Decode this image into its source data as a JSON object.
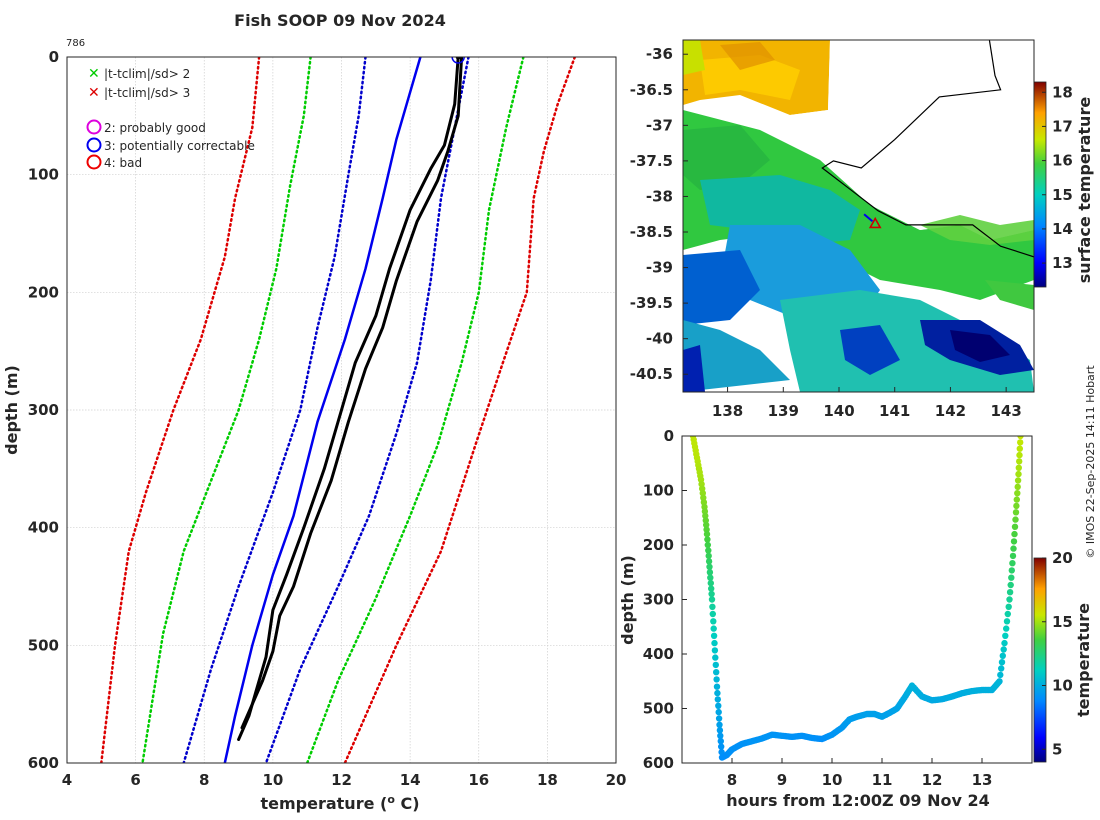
{
  "title": "Fish SOOP 09 Nov 2024",
  "profile_id": "786",
  "copyright": "© IMOS 22-Sep-2025 14:11 Hobart",
  "legend": {
    "items": [
      {
        "symbol": "x",
        "color": "#00cc00",
        "label": "|t-tclim|/sd> 2"
      },
      {
        "symbol": "x",
        "color": "#dd0000",
        "label": "|t-tclim|/sd> 3"
      },
      {
        "symbol": "o",
        "color": "#dd00dd",
        "label": "2: probably good"
      },
      {
        "symbol": "o",
        "color": "#0000ee",
        "label": "3: potentially correctable"
      },
      {
        "symbol": "o",
        "color": "#ee0000",
        "label": "4: bad"
      }
    ]
  },
  "colors": {
    "clim_mean": "#0000ee",
    "sd1": "#0000cc",
    "sd2": "#00cc00",
    "sd3": "#dd0000",
    "profile": "#000000",
    "sea_mask": "#ffffff",
    "coast": "#000000",
    "ship_marker": "#cc0000"
  },
  "chart_data": [
    {
      "id": "profile",
      "type": "line",
      "title": "Fish SOOP 09 Nov 2024",
      "xlabel": "temperature (",
      "xlabel_sup": "o",
      "xlabel_end": " C)",
      "ylabel": "depth (m)",
      "xlim": [
        4,
        20
      ],
      "ylim": [
        0,
        600
      ],
      "xticks": [
        4,
        6,
        8,
        10,
        12,
        14,
        16,
        18,
        20
      ],
      "yticks": [
        0,
        100,
        200,
        300,
        400,
        500,
        600
      ],
      "series": [
        {
          "name": "climatology mean",
          "style": "solid",
          "color": "#0000ee",
          "points": [
            [
              14.3,
              0
            ],
            [
              14.0,
              30
            ],
            [
              13.6,
              70
            ],
            [
              13.2,
              120
            ],
            [
              12.7,
              180
            ],
            [
              12.1,
              240
            ],
            [
              11.3,
              310
            ],
            [
              10.6,
              390
            ],
            [
              10.0,
              440
            ],
            [
              9.4,
              500
            ],
            [
              8.9,
              560
            ],
            [
              8.6,
              600
            ]
          ]
        },
        {
          "name": "mean - 1 sd",
          "style": "dotted",
          "color": "#0000cc",
          "points": [
            [
              12.7,
              0
            ],
            [
              12.5,
              50
            ],
            [
              12.2,
              100
            ],
            [
              11.8,
              170
            ],
            [
              11.3,
              230
            ],
            [
              10.8,
              300
            ],
            [
              10.0,
              370
            ],
            [
              9.0,
              450
            ],
            [
              8.2,
              520
            ],
            [
              7.4,
              600
            ]
          ]
        },
        {
          "name": "mean + 1 sd",
          "style": "dotted",
          "color": "#0000cc",
          "points": [
            [
              15.7,
              0
            ],
            [
              15.3,
              60
            ],
            [
              14.9,
              120
            ],
            [
              14.6,
              190
            ],
            [
              14.2,
              260
            ],
            [
              13.6,
              320
            ],
            [
              12.8,
              390
            ],
            [
              11.9,
              450
            ],
            [
              10.8,
              520
            ],
            [
              9.8,
              600
            ]
          ]
        },
        {
          "name": "mean - 2 sd",
          "style": "dotted",
          "color": "#00cc00",
          "points": [
            [
              11.1,
              0
            ],
            [
              10.9,
              50
            ],
            [
              10.5,
              110
            ],
            [
              10.1,
              180
            ],
            [
              9.6,
              240
            ],
            [
              9.0,
              300
            ],
            [
              8.2,
              360
            ],
            [
              7.4,
              420
            ],
            [
              6.8,
              490
            ],
            [
              6.2,
              600
            ]
          ]
        },
        {
          "name": "mean + 2 sd",
          "style": "dotted",
          "color": "#00cc00",
          "points": [
            [
              17.3,
              0
            ],
            [
              16.8,
              60
            ],
            [
              16.3,
              130
            ],
            [
              16.0,
              200
            ],
            [
              15.5,
              260
            ],
            [
              14.8,
              330
            ],
            [
              14.0,
              390
            ],
            [
              13.0,
              460
            ],
            [
              11.9,
              530
            ],
            [
              11.0,
              600
            ]
          ]
        },
        {
          "name": "mean - 3 sd",
          "style": "dotted",
          "color": "#dd0000",
          "points": [
            [
              9.6,
              0
            ],
            [
              9.4,
              60
            ],
            [
              8.9,
              120
            ],
            [
              8.6,
              170
            ],
            [
              7.9,
              240
            ],
            [
              7.1,
              300
            ],
            [
              6.3,
              370
            ],
            [
              5.8,
              420
            ],
            [
              5.4,
              500
            ],
            [
              5.0,
              600
            ]
          ]
        },
        {
          "name": "mean + 3 sd",
          "style": "dotted",
          "color": "#dd0000",
          "points": [
            [
              18.8,
              0
            ],
            [
              18.3,
              40
            ],
            [
              17.9,
              80
            ],
            [
              17.6,
              120
            ],
            [
              17.4,
              200
            ],
            [
              16.7,
              260
            ],
            [
              15.9,
              330
            ],
            [
              14.9,
              420
            ],
            [
              13.6,
              500
            ],
            [
              12.1,
              600
            ]
          ]
        },
        {
          "name": "profile down",
          "style": "solid",
          "color": "#000000",
          "points": [
            [
              15.4,
              0
            ],
            [
              15.3,
              40
            ],
            [
              15.0,
              75
            ],
            [
              14.6,
              95
            ],
            [
              14.0,
              130
            ],
            [
              13.4,
              180
            ],
            [
              13.0,
              220
            ],
            [
              12.4,
              260
            ],
            [
              12.0,
              300
            ],
            [
              11.5,
              350
            ],
            [
              10.9,
              400
            ],
            [
              10.4,
              440
            ],
            [
              10.0,
              470
            ],
            [
              9.8,
              510
            ],
            [
              9.5,
              540
            ],
            [
              9.3,
              560
            ],
            [
              9.0,
              580
            ]
          ]
        },
        {
          "name": "profile up",
          "style": "solid",
          "color": "#000000",
          "points": [
            [
              15.5,
              0
            ],
            [
              15.4,
              50
            ],
            [
              15.1,
              80
            ],
            [
              14.8,
              105
            ],
            [
              14.2,
              140
            ],
            [
              13.6,
              190
            ],
            [
              13.2,
              230
            ],
            [
              12.7,
              265
            ],
            [
              12.2,
              310
            ],
            [
              11.7,
              360
            ],
            [
              11.1,
              405
            ],
            [
              10.6,
              450
            ],
            [
              10.2,
              475
            ],
            [
              10.0,
              505
            ],
            [
              9.7,
              530
            ],
            [
              9.4,
              550
            ],
            [
              9.1,
              570
            ]
          ]
        }
      ],
      "markers": [
        {
          "type": "circle",
          "color": "#0000ee",
          "x": 15.4,
          "y": 0
        }
      ]
    },
    {
      "id": "sst_map",
      "type": "heatmap",
      "xlim": [
        137.2,
        143.5
      ],
      "ylim": [
        -40.75,
        -35.8
      ],
      "xticks": [
        138,
        139,
        140,
        141,
        142,
        143
      ],
      "yticks": [
        -36,
        -36.5,
        -37,
        -37.5,
        -38,
        -38.5,
        -39,
        -39.5,
        -40,
        -40.5
      ],
      "colorbar": {
        "label": "surface temperature",
        "range": [
          12.3,
          18.3
        ],
        "ticks": [
          13,
          14,
          15,
          16,
          17,
          18
        ]
      },
      "coastline": [
        [
          142.7,
          -35.8
        ],
        [
          142.8,
          -36.3
        ],
        [
          142.9,
          -36.5
        ],
        [
          141.8,
          -36.6
        ],
        [
          141.0,
          -37.2
        ],
        [
          140.4,
          -37.6
        ],
        [
          139.9,
          -37.5
        ],
        [
          139.7,
          -37.6
        ],
        [
          140.2,
          -37.9
        ],
        [
          140.7,
          -38.2
        ],
        [
          141.2,
          -38.4
        ],
        [
          141.5,
          -38.4
        ],
        [
          142.0,
          -38.4
        ],
        [
          142.4,
          -38.4
        ],
        [
          142.9,
          -38.7
        ],
        [
          143.3,
          -38.8
        ],
        [
          143.5,
          -38.85
        ]
      ],
      "ship_track": [
        [
          140.45,
          -38.25
        ],
        [
          140.6,
          -38.35
        ]
      ],
      "ship_position": [
        140.65,
        -38.38
      ]
    },
    {
      "id": "time_depth",
      "type": "scatter",
      "xlabel": "hours from 12:00Z 09 Nov 24",
      "ylabel": "depth (m)",
      "xlim": [
        7.0,
        14.0
      ],
      "ylim": [
        0,
        600
      ],
      "xticks": [
        8,
        9,
        10,
        11,
        12,
        13
      ],
      "yticks": [
        0,
        100,
        200,
        300,
        400,
        500,
        600
      ],
      "colorbar": {
        "label": "temperature",
        "range": [
          4,
          20
        ],
        "ticks": [
          5,
          10,
          15,
          20
        ]
      },
      "points": [
        [
          7.22,
          0,
          15.4
        ],
        [
          7.3,
          40,
          15.3
        ],
        [
          7.38,
          80,
          15.0
        ],
        [
          7.45,
          130,
          14.4
        ],
        [
          7.5,
          180,
          13.8
        ],
        [
          7.55,
          240,
          12.8
        ],
        [
          7.6,
          300,
          12.0
        ],
        [
          7.65,
          380,
          11.0
        ],
        [
          7.7,
          460,
          10.2
        ],
        [
          7.75,
          530,
          9.6
        ],
        [
          7.8,
          590,
          9.0
        ],
        [
          7.9,
          585,
          9.0
        ],
        [
          8.0,
          575,
          9.1
        ],
        [
          8.2,
          565,
          9.1
        ],
        [
          8.4,
          560,
          9.2
        ],
        [
          8.6,
          555,
          9.2
        ],
        [
          8.8,
          548,
          9.2
        ],
        [
          9.0,
          550,
          9.2
        ],
        [
          9.2,
          552,
          9.1
        ],
        [
          9.4,
          550,
          9.1
        ],
        [
          9.6,
          554,
          9.1
        ],
        [
          9.8,
          556,
          9.0
        ],
        [
          10.0,
          548,
          9.2
        ],
        [
          10.2,
          535,
          9.3
        ],
        [
          10.35,
          520,
          9.5
        ],
        [
          10.5,
          515,
          9.5
        ],
        [
          10.7,
          510,
          9.6
        ],
        [
          10.85,
          510,
          9.6
        ],
        [
          11.0,
          515,
          9.6
        ],
        [
          11.15,
          508,
          9.6
        ],
        [
          11.3,
          500,
          9.7
        ],
        [
          11.45,
          480,
          9.9
        ],
        [
          11.6,
          458,
          10.2
        ],
        [
          11.8,
          478,
          10.0
        ],
        [
          12.0,
          485,
          9.9
        ],
        [
          12.2,
          483,
          9.9
        ],
        [
          12.4,
          478,
          10.0
        ],
        [
          12.6,
          472,
          10.0
        ],
        [
          12.8,
          468,
          10.1
        ],
        [
          13.0,
          466,
          10.1
        ],
        [
          13.2,
          466,
          10.1
        ],
        [
          13.35,
          450,
          10.3
        ],
        [
          13.45,
          380,
          11.0
        ],
        [
          13.55,
          300,
          12.0
        ],
        [
          13.62,
          220,
          13.2
        ],
        [
          13.68,
          140,
          14.2
        ],
        [
          13.73,
          70,
          15.0
        ],
        [
          13.77,
          0,
          15.5
        ]
      ]
    }
  ]
}
